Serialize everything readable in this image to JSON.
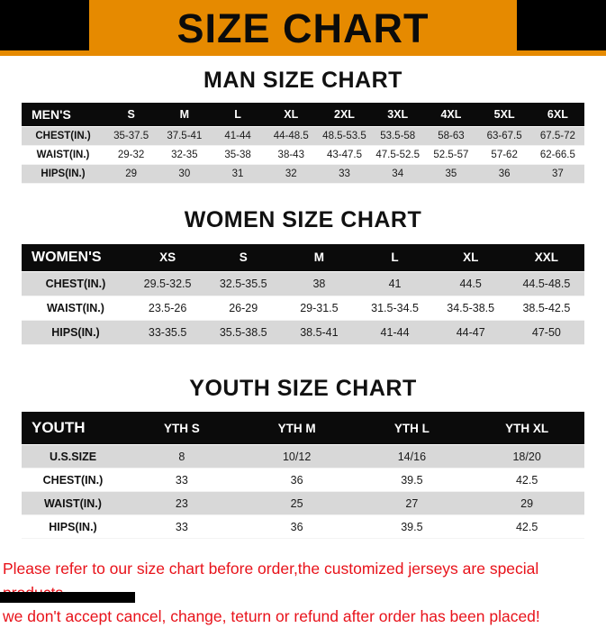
{
  "banner": {
    "title": "SIZE CHART"
  },
  "colors": {
    "banner_orange": "#E68A00",
    "header_black": "#0B0B0B",
    "shaded_row_gray": "#D8D8D8",
    "footer_red": "#E8121A",
    "corner_mark_black": "#000000"
  },
  "chart_data": [
    {
      "type": "table",
      "title": "MAN SIZE CHART",
      "columns": [
        "MEN'S",
        "S",
        "M",
        "L",
        "XL",
        "2XL",
        "3XL",
        "4XL",
        "5XL",
        "6XL"
      ],
      "rows": [
        [
          "CHEST(IN.)",
          "35-37.5",
          "37.5-41",
          "41-44",
          "44-48.5",
          "48.5-53.5",
          "53.5-58",
          "58-63",
          "63-67.5",
          "67.5-72"
        ],
        [
          "WAIST(IN.)",
          "29-32",
          "32-35",
          "35-38",
          "38-43",
          "43-47.5",
          "47.5-52.5",
          "52.5-57",
          "57-62",
          "62-66.5"
        ],
        [
          "HIPS(IN.)",
          "29",
          "30",
          "31",
          "32",
          "33",
          "34",
          "35",
          "36",
          "37"
        ]
      ]
    },
    {
      "type": "table",
      "title": "WOMEN SIZE CHART",
      "columns": [
        "WOMEN'S",
        "XS",
        "S",
        "M",
        "L",
        "XL",
        "XXL"
      ],
      "rows": [
        [
          "CHEST(IN.)",
          "29.5-32.5",
          "32.5-35.5",
          "38",
          "41",
          "44.5",
          "44.5-48.5"
        ],
        [
          "WAIST(IN.)",
          "23.5-26",
          "26-29",
          "29-31.5",
          "31.5-34.5",
          "34.5-38.5",
          "38.5-42.5"
        ],
        [
          "HIPS(IN.)",
          "33-35.5",
          "35.5-38.5",
          "38.5-41",
          "41-44",
          "44-47",
          "47-50"
        ]
      ]
    },
    {
      "type": "table",
      "title": "YOUTH SIZE CHART",
      "columns": [
        "YOUTH",
        "YTH S",
        "YTH M",
        "YTH L",
        "YTH XL"
      ],
      "rows": [
        [
          "U.S.SIZE",
          "8",
          "10/12",
          "14/16",
          "18/20"
        ],
        [
          "CHEST(IN.)",
          "33",
          "36",
          "39.5",
          "42.5"
        ],
        [
          "WAIST(IN.)",
          "23",
          "25",
          "27",
          "29"
        ],
        [
          "HIPS(IN.)",
          "33",
          "36",
          "39.5",
          "42.5"
        ]
      ]
    }
  ],
  "footer": {
    "line1": "Please refer to our size chart before order,the customized jerseys are special products,",
    "line2": "we don't accept cancel, change, teturn or refund after order has been placed!"
  }
}
